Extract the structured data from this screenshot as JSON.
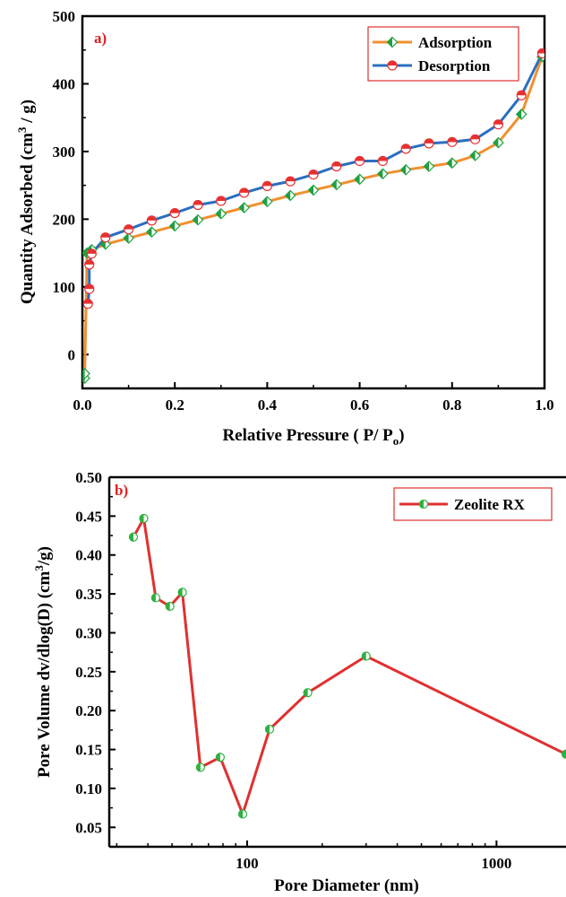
{
  "chart_data": [
    {
      "type": "line",
      "panel_label": "a)",
      "xlabel": "Relative Pressure ( P/ P",
      "xlabel_sub": "o",
      "xlabel_end": ")",
      "ylabel": "Quantity Adsorbed (cm",
      "ylabel_sup": "3",
      "ylabel_end": " / g)",
      "xlim": [
        0,
        1.0
      ],
      "ylim": [
        -50,
        500
      ],
      "xticks": [
        "0.0",
        "0.2",
        "0.4",
        "0.6",
        "0.8",
        "1.0"
      ],
      "yticks": [
        "0",
        "100",
        "200",
        "300",
        "400",
        "500"
      ],
      "legend_position": "top-right",
      "series": [
        {
          "name": "Adsorption",
          "color": "#f09030",
          "marker_color": "#20a040",
          "marker": "diamond",
          "x": [
            0.005,
            0.005,
            0.01,
            0.02,
            0.05,
            0.1,
            0.15,
            0.2,
            0.25,
            0.3,
            0.35,
            0.4,
            0.45,
            0.5,
            0.55,
            0.6,
            0.65,
            0.7,
            0.75,
            0.8,
            0.85,
            0.9,
            0.95,
            0.995
          ],
          "y": [
            -35,
            -28,
            150,
            155,
            163,
            172,
            181,
            190,
            199,
            208,
            217,
            226,
            235,
            243,
            251,
            259,
            267,
            273,
            278,
            283,
            294,
            313,
            355,
            440
          ]
        },
        {
          "name": "Desorption",
          "color": "#2a6fc0",
          "marker_color": "#e83030",
          "marker": "circle",
          "x": [
            0.995,
            0.95,
            0.9,
            0.85,
            0.8,
            0.75,
            0.7,
            0.65,
            0.6,
            0.55,
            0.5,
            0.45,
            0.4,
            0.35,
            0.3,
            0.25,
            0.2,
            0.15,
            0.1,
            0.05,
            0.02,
            0.015,
            0.015,
            0.012
          ],
          "y": [
            445,
            383,
            340,
            318,
            314,
            312,
            304,
            286,
            286,
            278,
            266,
            256,
            249,
            239,
            227,
            221,
            209,
            198,
            185,
            173,
            149,
            133,
            97,
            75
          ]
        }
      ]
    },
    {
      "type": "line",
      "panel_label": "b)",
      "xlabel": "Pore Diameter (nm)",
      "ylabel": "Pore Volume dv/dlog(D) (cm",
      "ylabel_sup": "3",
      "ylabel_end": "/g)",
      "xscale": "log",
      "xlim": [
        28,
        1900
      ],
      "ylim": [
        0.025,
        0.5
      ],
      "xticks": [
        "100",
        "1000"
      ],
      "yticks": [
        "0.05",
        "0.10",
        "0.15",
        "0.20",
        "0.25",
        "0.30",
        "0.35",
        "0.40",
        "0.45",
        "0.50"
      ],
      "legend_position": "top-right",
      "series": [
        {
          "name": "Zeolite RX",
          "color": "#e03030",
          "marker_color": "#30b040",
          "marker": "circle",
          "x": [
            35,
            38.5,
            43,
            49,
            55,
            65,
            78,
            96,
            123,
            175,
            300,
            1900
          ],
          "y": [
            0.423,
            0.447,
            0.345,
            0.334,
            0.352,
            0.127,
            0.14,
            0.067,
            0.176,
            0.223,
            0.27,
            0.144
          ]
        }
      ]
    }
  ]
}
